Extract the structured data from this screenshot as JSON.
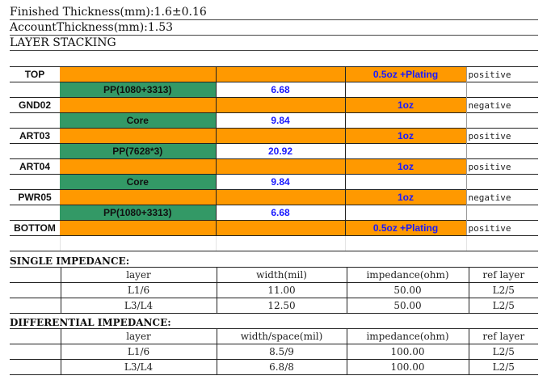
{
  "header": {
    "finished": "Finished Thickness(mm):1.6±0.16",
    "account": "AccountThickness(mm):1.53",
    "stacking": "LAYER STACKING"
  },
  "stack": [
    {
      "type": "copper",
      "layer": "TOP",
      "copper": "0.5oz +Plating",
      "polarity": "positive"
    },
    {
      "type": "dielectric",
      "material": "PP(1080+3313)",
      "thickness": "6.68"
    },
    {
      "type": "copper",
      "layer": "GND02",
      "copper": "1oz",
      "polarity": "negative"
    },
    {
      "type": "dielectric",
      "material": "Core",
      "thickness": "9.84"
    },
    {
      "type": "copper",
      "layer": "ART03",
      "copper": "1oz",
      "polarity": "positive"
    },
    {
      "type": "dielectric",
      "material": "PP(7628*3)",
      "thickness": "20.92"
    },
    {
      "type": "copper",
      "layer": "ART04",
      "copper": "1oz",
      "polarity": "positive"
    },
    {
      "type": "dielectric",
      "material": "Core",
      "thickness": "9.84"
    },
    {
      "type": "copper",
      "layer": "PWR05",
      "copper": "1oz",
      "polarity": "negative"
    },
    {
      "type": "dielectric",
      "material": "PP(1080+3313)",
      "thickness": "6.68"
    },
    {
      "type": "copper",
      "layer": "BOTTOM",
      "copper": "0.5oz +Plating",
      "polarity": "positive"
    }
  ],
  "single": {
    "title": "SINGLE   IMPEDANCE:",
    "headers": [
      "layer",
      "width(mil)",
      "impedance(ohm)",
      "ref layer"
    ],
    "rows": [
      [
        "L1/6",
        "11.00",
        "50.00",
        "L2/5"
      ],
      [
        "L3/L4",
        "12.50",
        "50.00",
        "L2/5"
      ]
    ]
  },
  "differential": {
    "title": "DIFFERENTIAL  IMPEDANCE:",
    "headers": [
      "layer",
      "width/space(mil)",
      "impedance(ohm)",
      "ref layer"
    ],
    "rows": [
      [
        "L1/6",
        "8.5/9",
        "100.00",
        "L2/5"
      ],
      [
        "L3/L4",
        "6.8/8",
        "100.00",
        "L2/5"
      ]
    ]
  },
  "colors": {
    "copper": "#ff9900",
    "dielectric": "#339966",
    "value": "#1a1aff"
  }
}
